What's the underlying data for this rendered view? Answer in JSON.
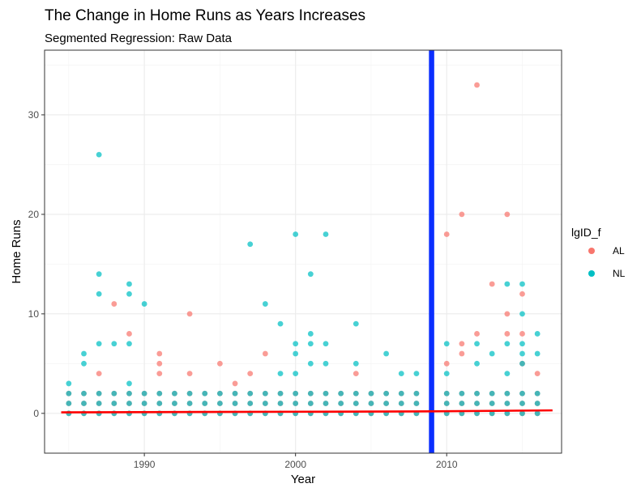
{
  "chart_data": {
    "type": "scatter",
    "title": "The Change in Home Runs as Years Increases",
    "subtitle": "Segmented Regression: Raw Data",
    "xlabel": "Year",
    "ylabel": "Home Runs",
    "xlim": [
      1983.4,
      2017.6
    ],
    "ylim": [
      -4,
      36.5
    ],
    "x_ticks": [
      1990,
      2000,
      2010
    ],
    "y_ticks": [
      0,
      10,
      20,
      30
    ],
    "grid": true,
    "legend": {
      "title": "lgID_f",
      "position": "right"
    },
    "colors": {
      "AL": "#F8766D",
      "NL": "#00BFC4",
      "cutpoint": "#0A2EFF",
      "regression": "#FF0000"
    },
    "series": [
      {
        "name": "AL",
        "points": [
          [
            1987,
            4
          ],
          [
            1988,
            11
          ],
          [
            1989,
            8
          ],
          [
            1991,
            6
          ],
          [
            1991,
            5
          ],
          [
            1991,
            4
          ],
          [
            1993,
            10
          ],
          [
            1993,
            4
          ],
          [
            1995,
            5
          ],
          [
            1996,
            3
          ],
          [
            1997,
            4
          ],
          [
            1998,
            6
          ],
          [
            2004,
            4
          ],
          [
            2010,
            18
          ],
          [
            2010,
            5
          ],
          [
            2011,
            20
          ],
          [
            2011,
            7
          ],
          [
            2011,
            6
          ],
          [
            2012,
            33
          ],
          [
            2012,
            8
          ],
          [
            2013,
            13
          ],
          [
            2014,
            20
          ],
          [
            2014,
            10
          ],
          [
            2014,
            8
          ],
          [
            2015,
            12
          ],
          [
            2015,
            8
          ],
          [
            2015,
            5
          ],
          [
            2016,
            4
          ]
        ]
      },
      {
        "name": "NL",
        "points": [
          [
            1985,
            3
          ],
          [
            1986,
            6
          ],
          [
            1986,
            5
          ],
          [
            1987,
            26
          ],
          [
            1987,
            14
          ],
          [
            1987,
            12
          ],
          [
            1987,
            7
          ],
          [
            1988,
            7
          ],
          [
            1989,
            13
          ],
          [
            1989,
            12
          ],
          [
            1989,
            7
          ],
          [
            1989,
            3
          ],
          [
            1990,
            11
          ],
          [
            1997,
            17
          ],
          [
            1998,
            11
          ],
          [
            1999,
            9
          ],
          [
            1999,
            4
          ],
          [
            2000,
            18
          ],
          [
            2000,
            7
          ],
          [
            2000,
            6
          ],
          [
            2000,
            4
          ],
          [
            2001,
            14
          ],
          [
            2001,
            8
          ],
          [
            2001,
            7
          ],
          [
            2001,
            5
          ],
          [
            2002,
            18
          ],
          [
            2002,
            7
          ],
          [
            2002,
            5
          ],
          [
            2004,
            9
          ],
          [
            2004,
            5
          ],
          [
            2006,
            6
          ],
          [
            2007,
            4
          ],
          [
            2008,
            4
          ],
          [
            2010,
            7
          ],
          [
            2010,
            4
          ],
          [
            2012,
            7
          ],
          [
            2012,
            5
          ],
          [
            2013,
            6
          ],
          [
            2014,
            13
          ],
          [
            2014,
            7
          ],
          [
            2014,
            4
          ],
          [
            2015,
            13
          ],
          [
            2015,
            10
          ],
          [
            2015,
            7
          ],
          [
            2015,
            6
          ],
          [
            2015,
            5
          ],
          [
            2016,
            8
          ],
          [
            2016,
            6
          ]
        ]
      }
    ],
    "low_value_years": [
      1985,
      1986,
      1987,
      1988,
      1989,
      1990,
      1991,
      1992,
      1993,
      1994,
      1995,
      1996,
      1997,
      1998,
      1999,
      2000,
      2001,
      2002,
      2003,
      2004,
      2005,
      2006,
      2007,
      2008,
      2010,
      2011,
      2012,
      2013,
      2014,
      2015,
      2016
    ],
    "low_values": [
      0,
      1,
      2
    ],
    "cutpoint_x": 2009,
    "regression": {
      "x": [
        1984.5,
        2009,
        2017
      ],
      "y": [
        0.1,
        0.2,
        0.3
      ]
    }
  }
}
